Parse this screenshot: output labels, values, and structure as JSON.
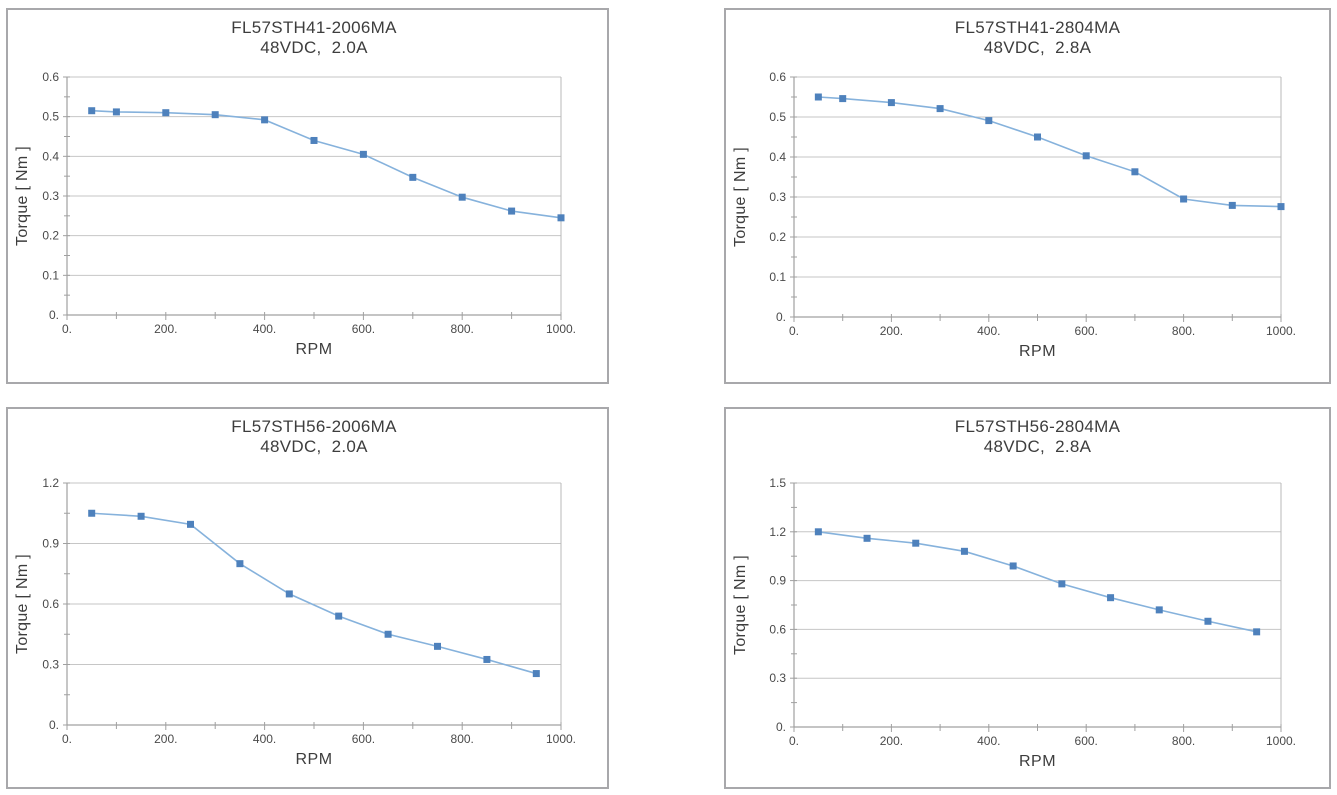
{
  "page": {
    "background": "#ffffff",
    "description": "Four torque vs speed performance curves for FL57STH stepper motors"
  },
  "colors": {
    "marker": "#4e81bc",
    "line": "#86b2dc",
    "grid": "#c6c6c6",
    "axis": "#a0a0a0",
    "plot_right_border": "#b8b8b8",
    "panel_border": "#a8a8ab",
    "text": "#3d3d3d",
    "tick_text": "#4a4a4a"
  },
  "chart_data": [
    {
      "type": "line",
      "title": "FL57STH41-2006MA",
      "subtitle": "48VDC,  2.0A",
      "xlabel": "RPM",
      "ylabel": "Torque [ Nm ]",
      "xlim": [
        0,
        1000
      ],
      "ylim": [
        0,
        0.6
      ],
      "x": [
        50,
        100,
        200,
        300,
        400,
        500,
        600,
        700,
        800,
        900,
        1000
      ],
      "y": [
        0.515,
        0.512,
        0.51,
        0.505,
        0.492,
        0.44,
        0.405,
        0.347,
        0.297,
        0.262,
        0.245
      ],
      "x_ticks": [
        {
          "value": 0,
          "label": "0."
        },
        {
          "value": 200,
          "label": "200."
        },
        {
          "value": 400,
          "label": "400."
        },
        {
          "value": 600,
          "label": "600."
        },
        {
          "value": 800,
          "label": "800."
        },
        {
          "value": 1000,
          "label": "1000."
        }
      ],
      "y_ticks": [
        {
          "value": 0,
          "label": "0."
        },
        {
          "value": 0.1,
          "label": "0.1"
        },
        {
          "value": 0.2,
          "label": "0.2"
        },
        {
          "value": 0.3,
          "label": "0.3"
        },
        {
          "value": 0.4,
          "label": "0.4"
        },
        {
          "value": 0.5,
          "label": "0.5"
        },
        {
          "value": 0.6,
          "label": "0.6"
        }
      ],
      "grid": "horizontal-major",
      "legend": "none",
      "marker": "square"
    },
    {
      "type": "line",
      "title": "FL57STH41-2804MA",
      "subtitle": "48VDC,  2.8A",
      "xlabel": "RPM",
      "ylabel": "Torque [ Nm ]",
      "xlim": [
        0,
        1000
      ],
      "ylim": [
        0,
        0.6
      ],
      "x": [
        50,
        100,
        200,
        300,
        400,
        500,
        600,
        700,
        800,
        900,
        1000
      ],
      "y": [
        0.55,
        0.546,
        0.536,
        0.521,
        0.491,
        0.45,
        0.403,
        0.363,
        0.295,
        0.279,
        0.276
      ],
      "x_ticks": [
        {
          "value": 0,
          "label": "0."
        },
        {
          "value": 200,
          "label": "200."
        },
        {
          "value": 400,
          "label": "400."
        },
        {
          "value": 600,
          "label": "600."
        },
        {
          "value": 800,
          "label": "800."
        },
        {
          "value": 1000,
          "label": "1000."
        }
      ],
      "y_ticks": [
        {
          "value": 0,
          "label": "0."
        },
        {
          "value": 0.1,
          "label": "0.1"
        },
        {
          "value": 0.2,
          "label": "0.2"
        },
        {
          "value": 0.3,
          "label": "0.3"
        },
        {
          "value": 0.4,
          "label": "0.4"
        },
        {
          "value": 0.5,
          "label": "0.5"
        },
        {
          "value": 0.6,
          "label": "0.6"
        }
      ],
      "grid": "horizontal-major",
      "legend": "none",
      "marker": "square"
    },
    {
      "type": "line",
      "title": "FL57STH56-2006MA",
      "subtitle": "48VDC,  2.0A",
      "xlabel": "RPM",
      "ylabel": "Torque [ Nm ]",
      "xlim": [
        0,
        1000
      ],
      "ylim": [
        0,
        1.2
      ],
      "x": [
        50,
        150,
        250,
        350,
        450,
        550,
        650,
        750,
        850,
        950
      ],
      "y": [
        1.05,
        1.035,
        0.995,
        0.8,
        0.65,
        0.54,
        0.45,
        0.39,
        0.325,
        0.255
      ],
      "x_ticks": [
        {
          "value": 0,
          "label": "0."
        },
        {
          "value": 200,
          "label": "200."
        },
        {
          "value": 400,
          "label": "400."
        },
        {
          "value": 600,
          "label": "600."
        },
        {
          "value": 800,
          "label": "800."
        },
        {
          "value": 1000,
          "label": "1000."
        }
      ],
      "y_ticks": [
        {
          "value": 0,
          "label": "0."
        },
        {
          "value": 0.3,
          "label": "0.3"
        },
        {
          "value": 0.6,
          "label": "0.6"
        },
        {
          "value": 0.9,
          "label": "0.9"
        },
        {
          "value": 1.2,
          "label": "1.2"
        }
      ],
      "grid": "horizontal-major",
      "legend": "none",
      "marker": "square"
    },
    {
      "type": "line",
      "title": "FL57STH56-2804MA",
      "subtitle": "48VDC,  2.8A",
      "xlabel": "RPM",
      "ylabel": "Torque [ Nm ]",
      "xlim": [
        0,
        1000
      ],
      "ylim": [
        0,
        1.5
      ],
      "x": [
        50,
        150,
        250,
        350,
        450,
        550,
        650,
        750,
        850,
        950
      ],
      "y": [
        1.2,
        1.16,
        1.13,
        1.08,
        0.99,
        0.88,
        0.795,
        0.72,
        0.65,
        0.585
      ],
      "x_ticks": [
        {
          "value": 0,
          "label": "0."
        },
        {
          "value": 200,
          "label": "200."
        },
        {
          "value": 400,
          "label": "400."
        },
        {
          "value": 600,
          "label": "600."
        },
        {
          "value": 800,
          "label": "800."
        },
        {
          "value": 1000,
          "label": "1000."
        }
      ],
      "y_ticks": [
        {
          "value": 0,
          "label": "0."
        },
        {
          "value": 0.3,
          "label": "0.3"
        },
        {
          "value": 0.6,
          "label": "0.6"
        },
        {
          "value": 0.9,
          "label": "0.9"
        },
        {
          "value": 1.2,
          "label": "1.2"
        },
        {
          "value": 1.5,
          "label": "1.5"
        }
      ],
      "grid": "horizontal-major",
      "legend": "none",
      "marker": "square"
    }
  ]
}
